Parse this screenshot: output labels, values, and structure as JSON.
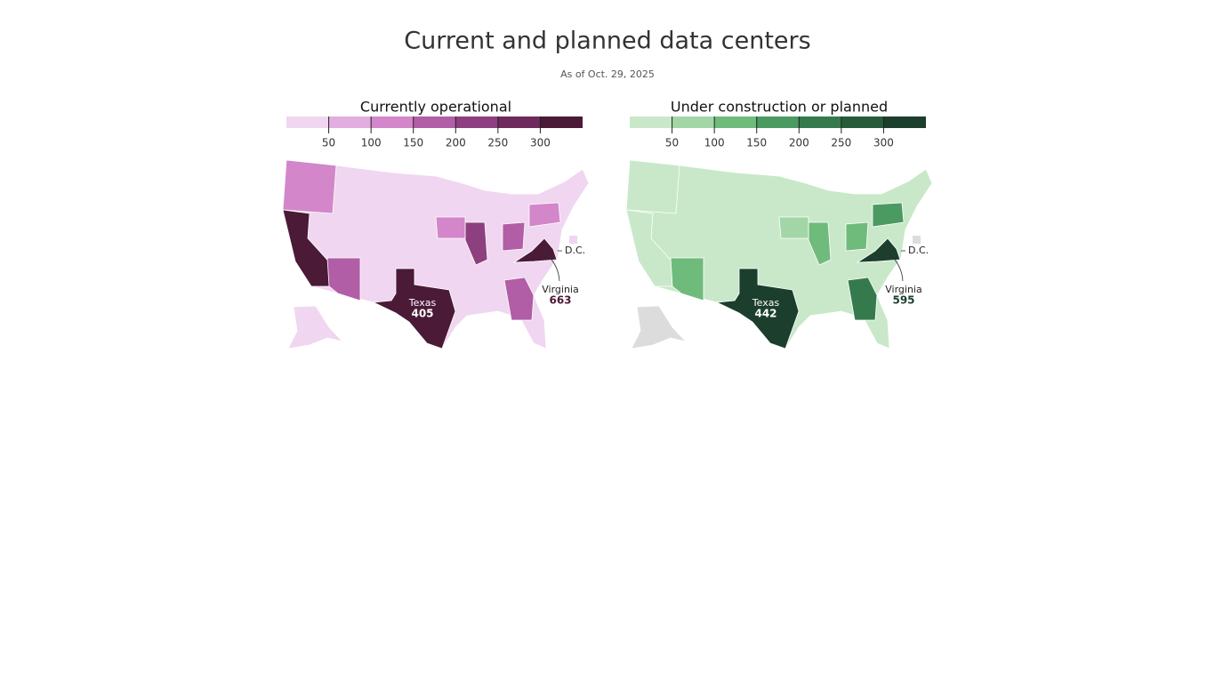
{
  "title": "Current and planned data centers",
  "subtitle": "As of Oct. 29, 2025",
  "chart_data": [
    {
      "type": "choropleth",
      "title": "Currently operational",
      "legend": {
        "lim": [
          0,
          350
        ],
        "ticks": [
          50,
          100,
          150,
          200,
          250,
          300
        ],
        "colors": [
          "#f0d6f0",
          "#e2aee0",
          "#d386c9",
          "#b15ea6",
          "#8e3f7f",
          "#6e2a5d",
          "#4a1a37"
        ]
      },
      "annotations": [
        {
          "label": "Texas",
          "value": 405
        },
        {
          "label": "Virginia",
          "value": 663
        },
        {
          "label": "D.C."
        }
      ]
    },
    {
      "type": "choropleth",
      "title": "Under construction or planned",
      "legend": {
        "lim": [
          0,
          350
        ],
        "ticks": [
          50,
          100,
          150,
          200,
          250,
          300
        ],
        "colors": [
          "#c9e8c9",
          "#a3d6a6",
          "#6fbb7c",
          "#4b9a62",
          "#357a4c",
          "#275c3b",
          "#1b3e2d"
        ]
      },
      "annotations": [
        {
          "label": "Texas",
          "value": 442
        },
        {
          "label": "Virginia",
          "value": 595
        },
        {
          "label": "D.C."
        }
      ]
    }
  ]
}
